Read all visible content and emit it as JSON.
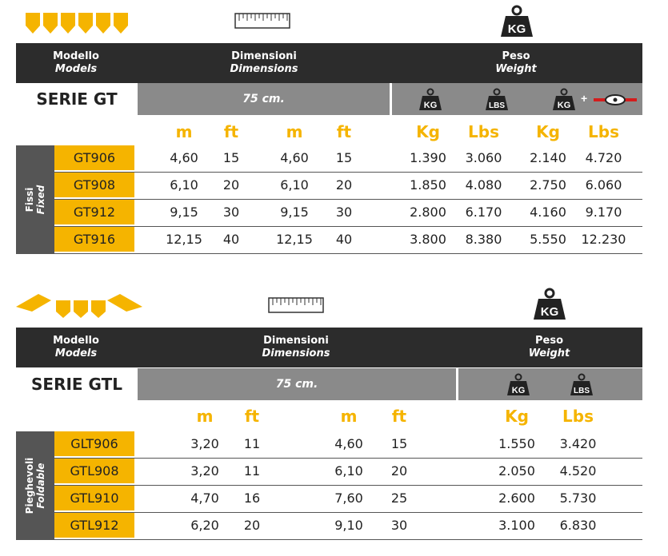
{
  "colors": {
    "accent": "#f5b400",
    "header_bg": "#2c2c2c",
    "grey_band": "#8a8a8a",
    "side_bg": "#555555"
  },
  "header": {
    "model_it": "Modello",
    "model_en": "Models",
    "dim_it": "Dimensioni",
    "dim_en": "Dimensions",
    "weight_it": "Peso",
    "weight_en": "Weight"
  },
  "units": {
    "m": "m",
    "ft": "ft",
    "kg": "Kg",
    "lbs": "Lbs"
  },
  "badges": {
    "kg": "KG",
    "lbs": "LBS",
    "plus": "+"
  },
  "gt": {
    "title": "SERIE GT",
    "depth": "75 cm.",
    "side_it": "Fissi",
    "side_en": "Fixed",
    "rows": [
      {
        "model": "GT906",
        "w_m": "4,60",
        "w_ft": "15",
        "l_m": "4,60",
        "l_ft": "15",
        "kg": "1.390",
        "lbs": "3.060",
        "kg2": "2.140",
        "lbs2": "4.720"
      },
      {
        "model": "GT908",
        "w_m": "6,10",
        "w_ft": "20",
        "l_m": "6,10",
        "l_ft": "20",
        "kg": "1.850",
        "lbs": "4.080",
        "kg2": "2.750",
        "lbs2": "6.060"
      },
      {
        "model": "GT912",
        "w_m": "9,15",
        "w_ft": "30",
        "l_m": "9,15",
        "l_ft": "30",
        "kg": "2.800",
        "lbs": "6.170",
        "kg2": "4.160",
        "lbs2": "9.170"
      },
      {
        "model": "GT916",
        "w_m": "12,15",
        "w_ft": "40",
        "l_m": "12,15",
        "l_ft": "40",
        "kg": "3.800",
        "lbs": "8.380",
        "kg2": "5.550",
        "lbs2": "12.230"
      }
    ]
  },
  "gtl": {
    "title": "SERIE GTL",
    "depth": "75 cm.",
    "side_it": "Pieghevoli",
    "side_en": "Foldable",
    "rows": [
      {
        "model": "GLT906",
        "w_m": "3,20",
        "w_ft": "11",
        "l_m": "4,60",
        "l_ft": "15",
        "kg": "1.550",
        "lbs": "3.420"
      },
      {
        "model": "GTL908",
        "w_m": "3,20",
        "w_ft": "11",
        "l_m": "6,10",
        "l_ft": "20",
        "kg": "2.050",
        "lbs": "4.520"
      },
      {
        "model": "GTL910",
        "w_m": "4,70",
        "w_ft": "16",
        "l_m": "7,60",
        "l_ft": "25",
        "kg": "2.600",
        "lbs": "5.730"
      },
      {
        "model": "GTL912",
        "w_m": "6,20",
        "w_ft": "20",
        "l_m": "9,10",
        "l_ft": "30",
        "kg": "3.100",
        "lbs": "6.830"
      }
    ]
  }
}
